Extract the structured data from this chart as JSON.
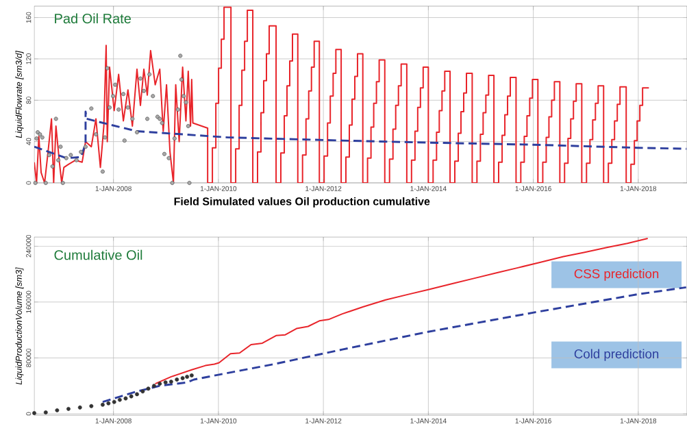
{
  "chart_data": [
    {
      "type": "line",
      "title": "Pad Oil Rate",
      "ylabel": "LiquidFlowrate [sm3/d]",
      "xlim": [
        "2006-06-29",
        "2018-12-06"
      ],
      "ylim": [
        0,
        171
      ],
      "xticks": [
        {
          "value": "2008-01-01",
          "label": "1-JAN-2008"
        },
        {
          "value": "2010-01-01",
          "label": "1-JAN-2010"
        },
        {
          "value": "2012-01-01",
          "label": "1-JAN-2012"
        },
        {
          "value": "2014-01-01",
          "label": "1-JAN-2014"
        },
        {
          "value": "2016-01-01",
          "label": "1-JAN-2016"
        },
        {
          "value": "2018-01-01",
          "label": "1-JAN-2018"
        }
      ],
      "yticks": [
        0,
        40,
        80,
        120,
        160
      ],
      "grid": true,
      "series": [
        {
          "color": "#e8242a",
          "x": [
            "2006-06-29",
            "2006-07-15",
            "2006-07-31",
            "2006-08-16",
            "2006-09-09",
            "2006-10-03",
            "2006-10-27",
            "2006-11-11",
            "2006-11-27",
            "2006-12-21",
            "2007-01-06",
            "2007-01-21",
            "2007-02-22",
            "2007-04-11",
            "2007-05-28",
            "2007-06-21",
            "2007-07-31",
            "2007-09-01",
            "2007-10-02",
            "2007-10-26",
            "2007-11-11",
            "2007-11-19",
            "2007-12-05",
            "2008-01-06",
            "2008-02-06",
            "2008-03-10",
            "2008-04-11",
            "2008-05-12",
            "2008-06-13",
            "2008-07-07",
            "2008-07-31",
            "2008-08-24",
            "2008-09-16",
            "2008-10-18",
            "2008-11-19",
            "2008-12-13",
            "2009-01-05",
            "2009-01-29",
            "2009-02-22",
            "2009-03-10",
            "2009-04-03",
            "2009-04-27",
            "2009-05-20",
            "2009-06-05",
            "2009-06-21",
            "2009-06-29",
            "2009-07-07",
            "2009-10-18",
            "2009-10-18"
          ],
          "values": [
            20,
            0,
            45,
            10,
            0,
            30,
            62,
            0,
            55,
            20,
            0,
            15,
            18,
            22,
            20,
            40,
            35,
            62,
            15,
            55,
            133,
            40,
            112,
            70,
            105,
            60,
            90,
            55,
            110,
            75,
            110,
            85,
            128,
            95,
            110,
            50,
            95,
            30,
            0,
            95,
            40,
            112,
            60,
            108,
            55,
            100,
            58,
            53,
            0
          ]
        },
        {
          "type": "step",
          "color": "#e8242a",
          "x": [
            "2009-10-18",
            "2009-11-20",
            "2009-12-14",
            "2010-01-02",
            "2010-01-21",
            "2010-02-09",
            "2010-03-29",
            "2010-05-01",
            "2010-05-25",
            "2010-06-13",
            "2010-07-02",
            "2010-07-21",
            "2010-08-28",
            "2010-09-30",
            "2010-10-24",
            "2010-11-12",
            "2010-12-01",
            "2010-12-20",
            "2011-02-06",
            "2011-03-11",
            "2011-04-04",
            "2011-04-23",
            "2011-05-12",
            "2011-05-31",
            "2011-07-07",
            "2011-08-09",
            "2011-09-02",
            "2011-09-21",
            "2011-10-10",
            "2011-10-29",
            "2011-12-04",
            "2012-01-06",
            "2012-01-30",
            "2012-02-18",
            "2012-03-09",
            "2012-03-28",
            "2012-05-04",
            "2012-06-06",
            "2012-06-30",
            "2012-07-19",
            "2012-08-07",
            "2012-08-26",
            "2012-10-02",
            "2012-11-04",
            "2012-11-28",
            "2012-12-17",
            "2013-01-05",
            "2013-01-24",
            "2013-03-04",
            "2013-04-06",
            "2013-04-30",
            "2013-05-19",
            "2013-06-07",
            "2013-06-26",
            "2013-08-04",
            "2013-09-06",
            "2013-09-30",
            "2013-10-19",
            "2013-11-07",
            "2013-11-26",
            "2014-01-01",
            "2014-02-03",
            "2014-02-27",
            "2014-03-18",
            "2014-04-06",
            "2014-04-25",
            "2014-06-01",
            "2014-07-04",
            "2014-07-28",
            "2014-08-16",
            "2014-09-04",
            "2014-09-23",
            "2014-11-02",
            "2014-12-05",
            "2014-12-29",
            "2015-01-17",
            "2015-02-05",
            "2015-02-24",
            "2015-04-02",
            "2015-05-05",
            "2015-05-29",
            "2015-06-17",
            "2015-07-06",
            "2015-07-25",
            "2015-09-03",
            "2015-10-06",
            "2015-10-30",
            "2015-11-18",
            "2015-12-07",
            "2015-12-26",
            "2016-02-02",
            "2016-03-07",
            "2016-03-31",
            "2016-04-19",
            "2016-05-08",
            "2016-05-27",
            "2016-07-04",
            "2016-08-06",
            "2016-08-30",
            "2016-09-18",
            "2016-10-07",
            "2016-10-26",
            "2016-12-04",
            "2017-01-06",
            "2017-01-30",
            "2017-02-18",
            "2017-03-09",
            "2017-03-28",
            "2017-05-05",
            "2017-06-07",
            "2017-07-01",
            "2017-07-20",
            "2017-08-08",
            "2017-08-27",
            "2017-10-09",
            "2017-11-11",
            "2017-12-05",
            "2017-12-24",
            "2018-01-12",
            "2018-01-31",
            "2018-03-16"
          ],
          "values": [
            0,
            34,
            77,
            111,
            139,
            170,
            0,
            33,
            75,
            109,
            137,
            167,
            0,
            30,
            68,
            99,
            125,
            152,
            0,
            29,
            65,
            94,
            118,
            144,
            0,
            27,
            62,
            89,
            112,
            137,
            0,
            26,
            58,
            84,
            106,
            129,
            0,
            25,
            56,
            81,
            103,
            125,
            0,
            24,
            54,
            77,
            98,
            119,
            0,
            23,
            52,
            75,
            94,
            115,
            0,
            22,
            50,
            73,
            92,
            112,
            0,
            22,
            49,
            70,
            89,
            108,
            0,
            21,
            48,
            69,
            87,
            106,
            0,
            21,
            47,
            68,
            85,
            104,
            0,
            20,
            46,
            66,
            84,
            102,
            0,
            20,
            45,
            65,
            82,
            100,
            0,
            20,
            44,
            64,
            80,
            98,
            0,
            19,
            43,
            62,
            79,
            96,
            0,
            19,
            42,
            61,
            77,
            94,
            0,
            19,
            42,
            60,
            76,
            93,
            0,
            18,
            41,
            60,
            75,
            92,
            92
          ]
        },
        {
          "color": "#2e3f9e",
          "line_style": "dashed",
          "x": [
            "2006-06-29",
            "2006-11-18",
            "2007-02-07",
            "2007-05-20",
            "2007-06-21",
            "2007-06-21",
            "2007-06-29",
            "2007-11-19",
            "2008-06-13",
            "2009-04-27",
            "2010-03-10",
            "2012-05-12",
            "2013-12-28",
            "2015-12-29",
            "2017-12-27",
            "2018-12-02"
          ],
          "values": [
            35,
            28,
            24,
            25,
            38,
            69,
            62,
            57,
            50,
            47,
            44,
            41,
            39,
            37,
            34,
            33
          ]
        },
        {
          "type": "scatter",
          "color": "#a8a8a8",
          "x": [
            "2006-07-07",
            "2006-07-15",
            "2006-07-23",
            "2006-08-08",
            "2006-08-24",
            "2006-09-17",
            "2006-10-11",
            "2006-11-03",
            "2006-11-27",
            "2006-12-13",
            "2006-12-29",
            "2007-01-14",
            "2007-02-07",
            "2007-03-10",
            "2007-04-19",
            "2007-05-20",
            "2007-06-21",
            "2007-07-31",
            "2007-09-01",
            "2007-10-18",
            "2007-11-03",
            "2007-11-19",
            "2007-12-05",
            "2007-12-29",
            "2008-01-13",
            "2008-02-06",
            "2008-03-10",
            "2008-03-18",
            "2008-04-11",
            "2008-05-12",
            "2008-06-13",
            "2008-07-07",
            "2008-07-31",
            "2008-08-24",
            "2008-09-08",
            "2008-10-02",
            "2008-11-03",
            "2008-11-19",
            "2008-12-05",
            "2008-12-21",
            "2009-01-21",
            "2009-02-14",
            "2009-03-02",
            "2009-03-26",
            "2009-04-11",
            "2009-04-19",
            "2009-05-04",
            "2009-05-20",
            "2009-06-05",
            "2009-06-13"
          ],
          "values": [
            0,
            43,
            49,
            47,
            44,
            0,
            27,
            16,
            62,
            22,
            35,
            0,
            24,
            27,
            22,
            30,
            35,
            72,
            47,
            11,
            44,
            111,
            73,
            84,
            95,
            71,
            86,
            41,
            73,
            62,
            49,
            101,
            89,
            62,
            105,
            84,
            64,
            62,
            58,
            28,
            24,
            0,
            43,
            71,
            123,
            100,
            84,
            78,
            55,
            0
          ]
        }
      ]
    },
    {
      "type": "line",
      "title": "Field Simulated values Oil production cumulative",
      "ylabel": "LiquidProductionVolume [sm3]",
      "annotations": [
        "Cumulative Oil"
      ],
      "xlim": [
        "2006-06-29",
        "2018-12-06"
      ],
      "ylim": [
        -2000,
        253000
      ],
      "xticks": [
        {
          "value": "2008-01-01",
          "label": "1-JAN-2008"
        },
        {
          "value": "2010-01-01",
          "label": "1-JAN-2010"
        },
        {
          "value": "2012-01-01",
          "label": "1-JAN-2012"
        },
        {
          "value": "2014-01-01",
          "label": "1-JAN-2014"
        },
        {
          "value": "2016-01-01",
          "label": "1-JAN-2016"
        },
        {
          "value": "2018-01-01",
          "label": "1-JAN-2018"
        }
      ],
      "yticks": [
        0,
        80000,
        160000,
        240000
      ],
      "grid": true,
      "series": [
        {
          "name": "CSS prediction",
          "color": "#e8242a",
          "x": [
            "2008-10-18",
            "2009-02-06",
            "2009-06-29",
            "2009-10-02",
            "2009-12-04",
            "2010-01-05",
            "2010-03-26",
            "2010-05-28",
            "2010-08-16",
            "2010-11-02",
            "2011-02-06",
            "2011-04-11",
            "2011-06-28",
            "2011-09-16",
            "2011-12-04",
            "2012-02-06",
            "2012-05-12",
            "2012-10-02",
            "2013-03-09",
            "2013-08-15",
            "2014-01-05",
            "2014-06-12",
            "2014-11-18",
            "2015-04-25",
            "2015-09-15",
            "2016-02-21",
            "2016-07-29",
            "2016-12-19",
            "2017-05-27",
            "2017-10-17",
            "2018-03-08"
          ],
          "values": [
            43000,
            53000,
            63000,
            69000,
            71000,
            73000,
            86000,
            87000,
            99000,
            101000,
            112000,
            113000,
            122000,
            125000,
            133000,
            135000,
            143000,
            153000,
            163000,
            171000,
            178000,
            186000,
            194000,
            202000,
            209000,
            217000,
            225000,
            231000,
            238000,
            244000,
            251000
          ]
        },
        {
          "name": "Cold prediction",
          "color": "#2e3f9e",
          "line_style": "dashed",
          "x": [
            "2007-10-18",
            "2008-06-13",
            "2008-11-19",
            "2009-05-28",
            "2009-07-15",
            "2010-01-05",
            "2011-01-20",
            "2012-05-12",
            "2013-12-20",
            "2016-01-05",
            "2017-12-27",
            "2018-11-30"
          ],
          "values": [
            17000,
            32000,
            40000,
            45000,
            49000,
            56000,
            71000,
            92000,
            117000,
            145000,
            171000,
            181000
          ]
        },
        {
          "type": "scatter",
          "color": "#333333",
          "x": [
            "2006-06-29",
            "2006-09-17",
            "2006-12-05",
            "2007-02-22",
            "2007-05-13",
            "2007-07-31",
            "2007-10-18",
            "2007-11-27",
            "2008-01-06",
            "2008-02-14",
            "2008-03-26",
            "2008-05-04",
            "2008-06-13",
            "2008-07-23",
            "2008-08-31",
            "2008-10-10",
            "2008-11-19",
            "2008-12-29",
            "2009-02-06",
            "2009-03-18",
            "2009-04-27",
            "2009-05-28",
            "2009-06-29"
          ],
          "values": [
            1000,
            2000,
            5000,
            7000,
            9000,
            11000,
            13000,
            15000,
            17000,
            20000,
            22000,
            25000,
            28000,
            32000,
            36000,
            40000,
            43000,
            45000,
            46000,
            49000,
            51000,
            53000,
            55000
          ]
        }
      ]
    }
  ]
}
